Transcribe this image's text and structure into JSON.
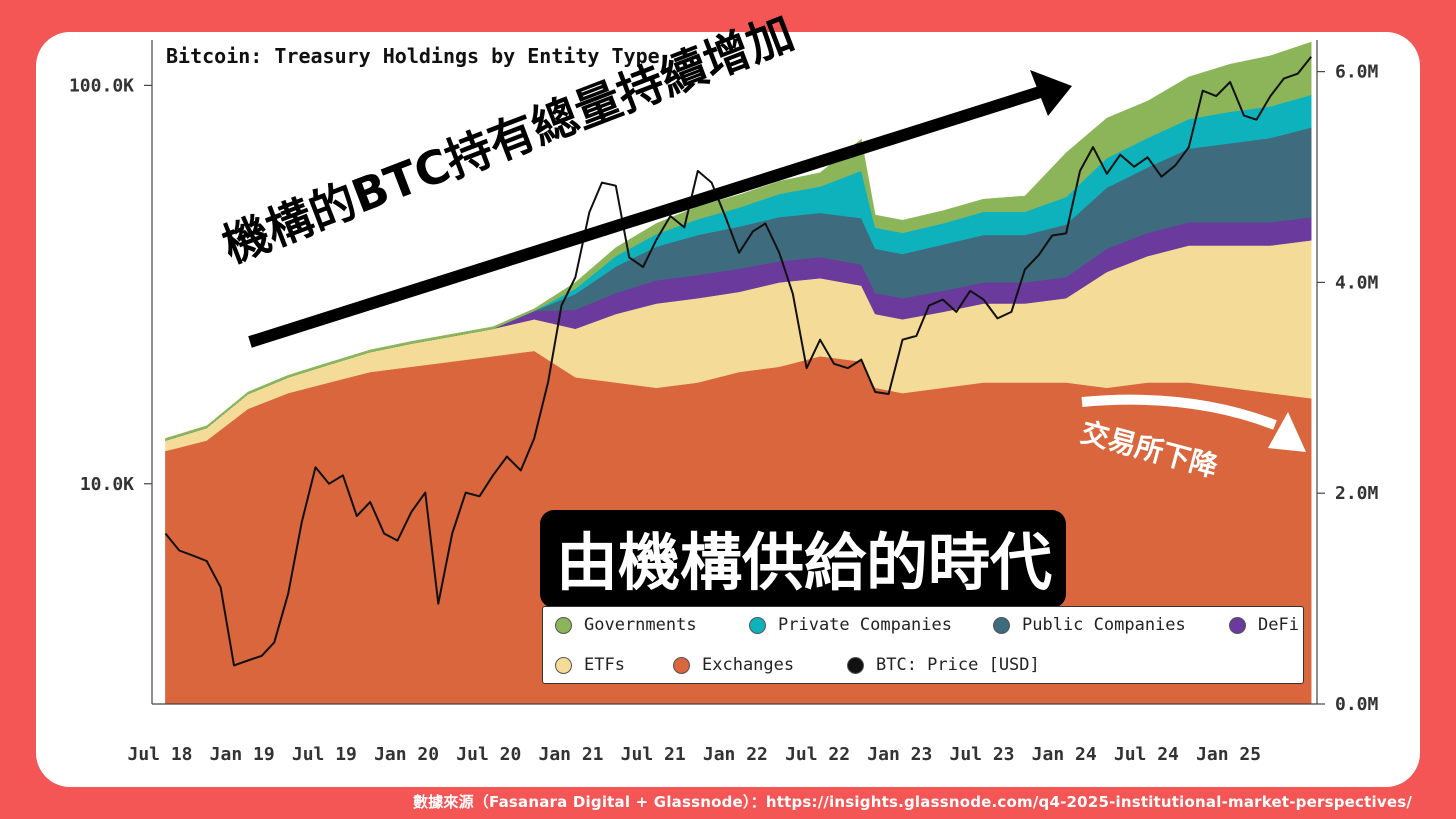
{
  "source_text": "數據來源（Fasanara Digital + Glassnode）：https://insights.glassnode.com/q4-2025-institutional-market-perspectives/",
  "annotations": {
    "holdings_up": "機構的BTC持有總量持續增加",
    "exchanges_down": "交易所下降",
    "era": "由機構供給的時代"
  },
  "chart_data": {
    "type": "area",
    "title": "Bitcoin: Treasury Holdings by Entity Type",
    "x_ticks": [
      "Jul 18",
      "Jan 19",
      "Jul 19",
      "Jan 20",
      "Jul 20",
      "Jan 21",
      "Jul 21",
      "Jan 22",
      "Jul 22",
      "Jan 23",
      "Jul 23",
      "Jan 24",
      "Jul 24",
      "Jan 25"
    ],
    "y_left": {
      "scale": "log",
      "ticks": [
        "10.0K",
        "100.0K"
      ],
      "tick_values": [
        10000,
        100000
      ],
      "range": [
        2800,
        130000
      ]
    },
    "y_right": {
      "scale": "linear",
      "ticks": [
        "0.0M",
        "2.0M",
        "4.0M",
        "6.0M"
      ],
      "tick_values": [
        0,
        2000000,
        4000000,
        6000000
      ],
      "range": [
        0,
        6300000
      ]
    },
    "legend_placement": "bottom-right",
    "x": [
      "2018-07",
      "2018-10",
      "2019-01",
      "2019-04",
      "2019-07",
      "2019-10",
      "2020-01",
      "2020-04",
      "2020-07",
      "2020-10",
      "2021-01",
      "2021-04",
      "2021-07",
      "2021-10",
      "2022-01",
      "2022-04",
      "2022-07",
      "2022-10",
      "2022-11",
      "2023-01",
      "2023-04",
      "2023-07",
      "2023-10",
      "2024-01",
      "2024-04",
      "2024-07",
      "2024-10",
      "2025-01",
      "2025-04",
      "2025-07"
    ],
    "series": [
      {
        "name": "Exchanges",
        "color": "#d9663d",
        "values": [
          2400000,
          2500000,
          2800000,
          2950000,
          3050000,
          3150000,
          3200000,
          3250000,
          3300000,
          3350000,
          3100000,
          3050000,
          3000000,
          3050000,
          3150000,
          3200000,
          3300000,
          3250000,
          3000000,
          2950000,
          3000000,
          3050000,
          3050000,
          3050000,
          3000000,
          3050000,
          3050000,
          3000000,
          2950000,
          2900000
        ]
      },
      {
        "name": "ETFs",
        "color": "#f4dc98",
        "values": [
          100000,
          120000,
          140000,
          150000,
          170000,
          190000,
          220000,
          240000,
          260000,
          300000,
          460000,
          650000,
          800000,
          800000,
          760000,
          800000,
          740000,
          720000,
          700000,
          700000,
          720000,
          750000,
          750000,
          800000,
          1100000,
          1200000,
          1300000,
          1350000,
          1400000,
          1500000
        ]
      },
      {
        "name": "DeFi",
        "color": "#6a3a9c",
        "values": [
          0,
          0,
          0,
          0,
          0,
          0,
          0,
          0,
          0,
          80000,
          180000,
          200000,
          220000,
          220000,
          220000,
          200000,
          200000,
          200000,
          200000,
          200000,
          200000,
          200000,
          200000,
          200000,
          220000,
          220000,
          220000,
          220000,
          220000,
          220000
        ]
      },
      {
        "name": "Public Companies",
        "color": "#3e6b7e",
        "values": [
          0,
          0,
          0,
          0,
          0,
          0,
          0,
          0,
          0,
          0,
          150000,
          250000,
          320000,
          380000,
          400000,
          420000,
          420000,
          440000,
          420000,
          420000,
          440000,
          450000,
          450000,
          500000,
          580000,
          620000,
          700000,
          750000,
          800000,
          850000
        ]
      },
      {
        "name": "Private Companies",
        "color": "#0eb2bc",
        "values": [
          0,
          0,
          0,
          0,
          0,
          0,
          0,
          0,
          0,
          0,
          50000,
          100000,
          120000,
          150000,
          180000,
          220000,
          250000,
          450000,
          200000,
          200000,
          200000,
          220000,
          220000,
          260000,
          280000,
          280000,
          280000,
          300000,
          300000,
          310000
        ]
      },
      {
        "name": "Governments",
        "color": "#8cb55a",
        "values": [
          20000,
          20000,
          20000,
          20000,
          20000,
          20000,
          20000,
          20000,
          20000,
          20000,
          60000,
          80000,
          100000,
          120000,
          120000,
          120000,
          130000,
          300000,
          120000,
          120000,
          120000,
          120000,
          150000,
          420000,
          380000,
          350000,
          400000,
          450000,
          480000,
          500000
        ]
      }
    ],
    "price": {
      "name": "BTC: Price [USD]",
      "color": "#111111",
      "x": [
        "2018-07",
        "2018-08",
        "2018-09",
        "2018-10",
        "2018-11",
        "2018-12",
        "2019-01",
        "2019-02",
        "2019-03",
        "2019-04",
        "2019-05",
        "2019-06",
        "2019-07",
        "2019-08",
        "2019-09",
        "2019-10",
        "2019-11",
        "2019-12",
        "2020-01",
        "2020-02",
        "2020-03",
        "2020-04",
        "2020-05",
        "2020-06",
        "2020-07",
        "2020-08",
        "2020-09",
        "2020-10",
        "2020-11",
        "2020-12",
        "2021-01",
        "2021-02",
        "2021-03",
        "2021-04",
        "2021-05",
        "2021-06",
        "2021-07",
        "2021-08",
        "2021-09",
        "2021-10",
        "2021-11",
        "2021-12",
        "2022-01",
        "2022-02",
        "2022-03",
        "2022-04",
        "2022-05",
        "2022-06",
        "2022-07",
        "2022-08",
        "2022-09",
        "2022-10",
        "2022-11",
        "2022-12",
        "2023-01",
        "2023-02",
        "2023-03",
        "2023-04",
        "2023-05",
        "2023-06",
        "2023-07",
        "2023-08",
        "2023-09",
        "2023-10",
        "2023-11",
        "2023-12",
        "2024-01",
        "2024-02",
        "2024-03",
        "2024-04",
        "2024-05",
        "2024-06",
        "2024-07",
        "2024-08",
        "2024-09",
        "2024-10",
        "2024-11",
        "2024-12",
        "2025-01",
        "2025-02",
        "2025-03",
        "2025-04",
        "2025-05",
        "2025-06",
        "2025-07"
      ],
      "values": [
        7500,
        6800,
        6600,
        6400,
        5500,
        3500,
        3600,
        3700,
        4000,
        5300,
        8000,
        11000,
        10000,
        10500,
        8300,
        9000,
        7500,
        7200,
        8500,
        9500,
        5000,
        7500,
        9500,
        9300,
        10500,
        11700,
        10800,
        13000,
        18000,
        28000,
        33000,
        48000,
        57000,
        56000,
        37000,
        35000,
        41000,
        47000,
        44000,
        61000,
        57000,
        47000,
        38000,
        43000,
        45000,
        38000,
        30000,
        19500,
        23000,
        20000,
        19500,
        20500,
        17000,
        16800,
        23000,
        23500,
        28000,
        29000,
        27000,
        30500,
        29000,
        26000,
        27000,
        34500,
        37500,
        42000,
        42500,
        61000,
        70000,
        60000,
        67000,
        62500,
        66000,
        59000,
        63000,
        70000,
        97000,
        94000,
        102000,
        84000,
        82000,
        94000,
        104000,
        107000,
        118000
      ]
    }
  },
  "legend": [
    {
      "label": "Governments",
      "color": "#8cb55a"
    },
    {
      "label": "Private Companies",
      "color": "#0eb2bc"
    },
    {
      "label": "Public Companies",
      "color": "#3e6b7e"
    },
    {
      "label": "DeFi",
      "color": "#6a3a9c"
    },
    {
      "label": "ETFs",
      "color": "#f4dc98"
    },
    {
      "label": "Exchanges",
      "color": "#d9663d"
    },
    {
      "label": "BTC: Price [USD]",
      "color": "#111111"
    }
  ]
}
